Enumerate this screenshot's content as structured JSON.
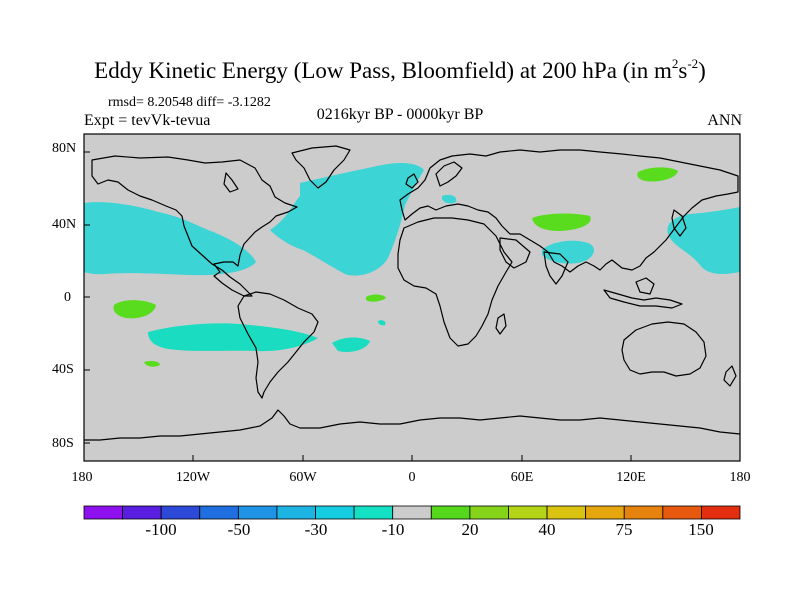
{
  "title": {
    "prefix": "Eddy Kinetic Energy (Low Pass, Bloomfield) at 200 hPa (in m",
    "sup1": "2",
    "mid": "s",
    "sup2": "-2",
    "suffix": ")"
  },
  "stats": {
    "text": "rmsd= 8.20548 diff= -3.1282"
  },
  "experiment": {
    "text": "Expt = tevVk-tevua"
  },
  "period": {
    "text": "0216kyr BP - 0000kyr BP"
  },
  "season": {
    "text": "ANN"
  },
  "map": {
    "background_color": "#cccccc",
    "lat_labels": [
      "80N",
      "40N",
      "0",
      "40S",
      "80S"
    ],
    "lon_labels": [
      "180",
      "120W",
      "60W",
      "0",
      "60E",
      "120E",
      "180"
    ]
  },
  "colorbar": {
    "colors": [
      "#8f10ef",
      "#5a1de2",
      "#2d49d8",
      "#1f6fe0",
      "#1f94e6",
      "#1db4e4",
      "#16cce0",
      "#14e0c4",
      "#cccccc",
      "#55d81b",
      "#86d41a",
      "#b4d418",
      "#dac411",
      "#e5a60e",
      "#e6830f",
      "#e6590f",
      "#e32e10"
    ],
    "labels": [
      "-100",
      "-50",
      "-30",
      "-10",
      "20",
      "40",
      "75",
      "150"
    ],
    "anomaly_fill": {
      "cyan": "#3cd4d4",
      "teal": "#19dcc0",
      "green": "#5adc1e"
    }
  }
}
